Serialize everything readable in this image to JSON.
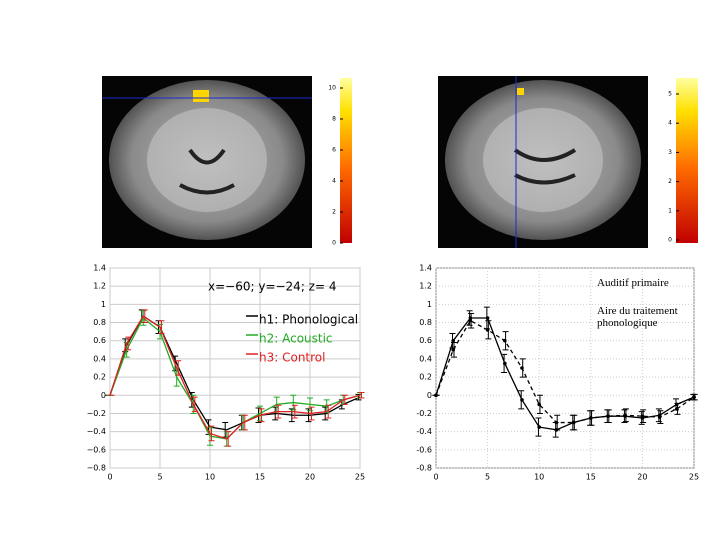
{
  "chart_data": [
    {
      "type": "line",
      "annotation": "x=−60; y=−24; z= 4",
      "x": [
        0,
        1.67,
        3.33,
        5,
        6.67,
        8.33,
        10,
        11.67,
        13.33,
        15,
        16.67,
        18.33,
        20,
        21.67,
        23.33,
        25
      ],
      "xlim": [
        0,
        25
      ],
      "xticks": [
        0,
        5,
        10,
        15,
        20,
        25
      ],
      "ylim": [
        -0.8,
        1.4
      ],
      "yticks": [
        {
          "value": -0.8,
          "label": "−0.8"
        },
        {
          "value": -0.6,
          "label": "−0.6"
        },
        {
          "value": -0.4,
          "label": "−0.4"
        },
        {
          "value": -0.2,
          "label": "−0.2"
        },
        0,
        0.2,
        0.4,
        0.6,
        0.8,
        1,
        1.2,
        1.4
      ],
      "grid": true,
      "series": [
        {
          "name": "h1: Phonological",
          "color": "#000000",
          "linestyle": "solid",
          "values": [
            0,
            0.55,
            0.87,
            0.75,
            0.35,
            -0.05,
            -0.35,
            -0.38,
            -0.3,
            -0.22,
            -0.2,
            -0.22,
            -0.22,
            -0.2,
            -0.1,
            -0.02
          ],
          "errors": [
            0,
            0.07,
            0.07,
            0.07,
            0.08,
            0.08,
            0.08,
            0.08,
            0.08,
            0.08,
            0.07,
            0.07,
            0.07,
            0.07,
            0.05,
            0.03
          ]
        },
        {
          "name": "h2: Acoustic",
          "color": "#22aa22",
          "linestyle": "solid",
          "values": [
            0,
            0.5,
            0.85,
            0.7,
            0.2,
            -0.1,
            -0.45,
            -0.48,
            -0.3,
            -0.2,
            -0.1,
            -0.08,
            -0.1,
            -0.12,
            -0.05,
            0
          ],
          "errors": [
            0,
            0.08,
            0.08,
            0.08,
            0.1,
            0.1,
            0.1,
            0.08,
            0.08,
            0.08,
            0.08,
            0.08,
            0.07,
            0.07,
            0.05,
            0.03
          ]
        },
        {
          "name": "h3: Control",
          "color": "#dd2222",
          "linestyle": "solid",
          "values": [
            0,
            0.57,
            0.87,
            0.75,
            0.3,
            -0.1,
            -0.42,
            -0.48,
            -0.3,
            -0.22,
            -0.18,
            -0.18,
            -0.2,
            -0.18,
            -0.05,
            0
          ],
          "errors": [
            0,
            0.07,
            0.07,
            0.07,
            0.08,
            0.08,
            0.08,
            0.08,
            0.08,
            0.07,
            0.07,
            0.07,
            0.07,
            0.07,
            0.05,
            0.03
          ]
        }
      ]
    },
    {
      "type": "line",
      "x": [
        0,
        1.67,
        3.33,
        5,
        6.67,
        8.33,
        10,
        11.67,
        13.33,
        15,
        16.67,
        18.33,
        20,
        21.67,
        23.33,
        25
      ],
      "xlim": [
        0,
        25
      ],
      "xticks": [
        0,
        5,
        10,
        15,
        20,
        25
      ],
      "ylim": [
        -0.8,
        1.4
      ],
      "yticks": [
        -0.8,
        -0.6,
        -0.4,
        -0.2,
        0,
        0.2,
        0.4,
        0.6,
        0.8,
        1,
        1.2,
        1.4
      ],
      "grid": true,
      "series": [
        {
          "name": "Auditif primaire",
          "color": "#000000",
          "linestyle": "solid",
          "values": [
            0,
            0.6,
            0.85,
            0.85,
            0.35,
            -0.05,
            -0.35,
            -0.38,
            -0.3,
            -0.25,
            -0.23,
            -0.23,
            -0.25,
            -0.22,
            -0.1,
            -0.02
          ],
          "errors": [
            0,
            0.08,
            0.08,
            0.12,
            0.1,
            0.1,
            0.1,
            0.08,
            0.08,
            0.08,
            0.07,
            0.07,
            0.07,
            0.07,
            0.06,
            0.03
          ]
        },
        {
          "name": "Aire du traitement phonologique",
          "color": "#000000",
          "linestyle": "dashed",
          "values": [
            0,
            0.5,
            0.82,
            0.72,
            0.6,
            0.3,
            -0.1,
            -0.3,
            -0.3,
            -0.25,
            -0.23,
            -0.22,
            -0.23,
            -0.24,
            -0.15,
            -0.02
          ],
          "errors": [
            0,
            0.08,
            0.08,
            0.1,
            0.1,
            0.1,
            0.1,
            0.08,
            0.08,
            0.08,
            0.07,
            0.07,
            0.07,
            0.07,
            0.06,
            0.03
          ]
        }
      ]
    }
  ],
  "colorbars": [
    {
      "ticks": [
        0,
        2,
        4,
        6,
        8,
        10
      ]
    },
    {
      "ticks": [
        0,
        1,
        2,
        3,
        4,
        5
      ]
    }
  ]
}
